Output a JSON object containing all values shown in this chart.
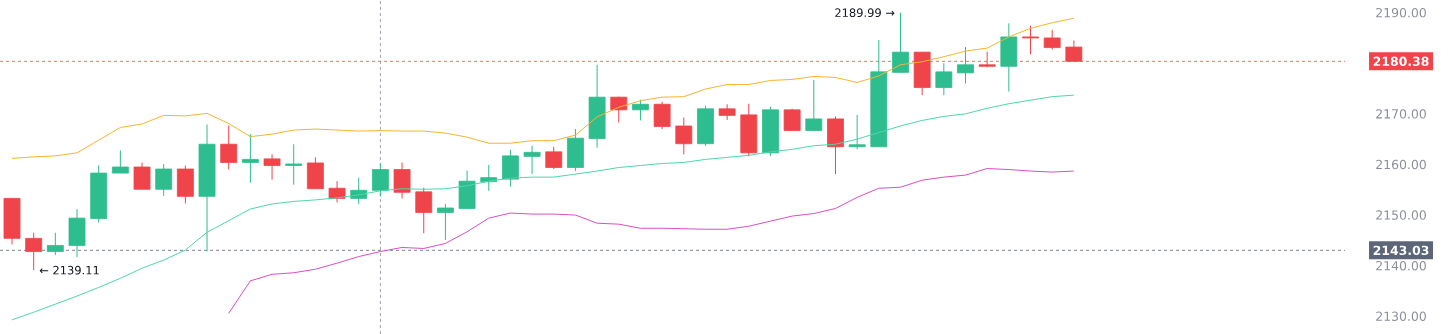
{
  "chart_data": {
    "type": "candlestick",
    "categories": [
      null,
      null,
      null,
      null,
      null,
      null,
      null,
      null,
      null,
      null,
      null,
      null,
      null,
      null,
      null,
      null,
      null,
      null,
      null,
      null,
      null,
      null,
      null,
      null,
      null,
      null,
      null,
      null,
      null,
      null,
      null,
      null,
      null,
      null,
      null,
      null,
      null,
      null,
      null,
      null,
      null,
      null,
      null,
      null,
      null,
      null,
      null,
      null,
      null,
      null
    ],
    "ohlc": [
      [
        2153.3,
        2153.4,
        2144.2,
        2145.4
      ],
      [
        2145.4,
        2146.5,
        2139.11,
        2142.8
      ],
      [
        2142.8,
        2146.5,
        2142.1,
        2144.0
      ],
      [
        2144.0,
        2151.2,
        2141.7,
        2149.4
      ],
      [
        2149.3,
        2159.8,
        2148.5,
        2158.3
      ],
      [
        2158.3,
        2162.8,
        2158.3,
        2159.5
      ],
      [
        2159.5,
        2160.4,
        2155.1,
        2155.1
      ],
      [
        2155.1,
        2160.1,
        2153.8,
        2159.1
      ],
      [
        2159.1,
        2159.8,
        2152.3,
        2153.7
      ],
      [
        2153.7,
        2167.9,
        2142.8,
        2164.0
      ],
      [
        2164.0,
        2167.7,
        2159.0,
        2160.4
      ],
      [
        2160.4,
        2166.0,
        2156.4,
        2161.0
      ],
      [
        2161.1,
        2162.0,
        2157.0,
        2159.8
      ],
      [
        2159.8,
        2164.0,
        2156.0,
        2160.1
      ],
      [
        2160.3,
        2161.4,
        2155.2,
        2155.2
      ],
      [
        2155.3,
        2156.7,
        2152.5,
        2153.3
      ],
      [
        2153.3,
        2157.4,
        2152.2,
        2154.9
      ],
      [
        2154.9,
        2160.2,
        2153.7,
        2159.0
      ],
      [
        2159.0,
        2160.4,
        2153.3,
        2154.5
      ],
      [
        2154.6,
        2155.4,
        2146.4,
        2150.5
      ],
      [
        2150.5,
        2152.2,
        2145.1,
        2151.4
      ],
      [
        2151.3,
        2158.8,
        2151.3,
        2156.7
      ],
      [
        2156.6,
        2159.9,
        2154.8,
        2157.4
      ],
      [
        2157.1,
        2162.9,
        2155.6,
        2161.7
      ],
      [
        2161.6,
        2163.7,
        2158.1,
        2162.4
      ],
      [
        2162.5,
        2163.5,
        2159.1,
        2159.4
      ],
      [
        2159.4,
        2167.0,
        2158.7,
        2165.2
      ],
      [
        2165.1,
        2179.7,
        2163.3,
        2173.3
      ],
      [
        2173.3,
        2173.4,
        2168.3,
        2170.8
      ],
      [
        2170.8,
        2172.8,
        2168.7,
        2171.9
      ],
      [
        2171.9,
        2172.4,
        2167.0,
        2167.5
      ],
      [
        2167.6,
        2169.3,
        2162.0,
        2164.1
      ],
      [
        2164.1,
        2171.6,
        2163.7,
        2171.0
      ],
      [
        2171.0,
        2171.9,
        2168.8,
        2169.7
      ],
      [
        2169.8,
        2172.0,
        2161.6,
        2162.3
      ],
      [
        2162.3,
        2171.4,
        2161.7,
        2170.8
      ],
      [
        2170.8,
        2171.0,
        2166.7,
        2166.7
      ],
      [
        2166.7,
        2176.7,
        2166.7,
        2169.0
      ],
      [
        2169.0,
        2169.5,
        2158.1,
        2163.5
      ],
      [
        2163.5,
        2169.8,
        2163.0,
        2163.9
      ],
      [
        2163.5,
        2184.6,
        2163.5,
        2178.3
      ],
      [
        2178.2,
        2189.99,
        2178.2,
        2182.2
      ],
      [
        2182.2,
        2182.2,
        2173.7,
        2175.2
      ],
      [
        2175.2,
        2180.0,
        2173.7,
        2178.3
      ],
      [
        2178.1,
        2183.2,
        2176.0,
        2179.7
      ],
      [
        2179.7,
        2182.3,
        2179.2,
        2179.4
      ],
      [
        2179.4,
        2187.9,
        2174.4,
        2185.2
      ],
      [
        2185.2,
        2187.4,
        2181.8,
        2185.0
      ],
      [
        2185.0,
        2186.6,
        2182.7,
        2183.1
      ],
      [
        2183.2,
        2184.5,
        2180.38,
        2180.38
      ]
    ],
    "colors": [
      "#ef454a",
      "#ef454a",
      "#2ebd8e",
      "#2ebd8e",
      "#2ebd8e",
      "#2ebd8e",
      "#ef454a",
      "#2ebd8e",
      "#ef454a",
      "#2ebd8e",
      "#ef454a",
      "#2ebd8e",
      "#ef454a",
      "#2ebd8e",
      "#ef454a",
      "#ef454a",
      "#2ebd8e",
      "#2ebd8e",
      "#ef454a",
      "#ef454a",
      "#2ebd8e",
      "#2ebd8e",
      "#2ebd8e",
      "#2ebd8e",
      "#2ebd8e",
      "#ef454a",
      "#2ebd8e",
      "#2ebd8e",
      "#ef454a",
      "#2ebd8e",
      "#ef454a",
      "#ef454a",
      "#2ebd8e",
      "#ef454a",
      "#ef454a",
      "#2ebd8e",
      "#ef454a",
      "#2ebd8e",
      "#ef454a",
      "#2ebd8e",
      "#2ebd8e",
      "#2ebd8e",
      "#ef454a",
      "#2ebd8e",
      "#2ebd8e",
      "#ef454a",
      "#2ebd8e",
      "#ef454a",
      "#ef454a",
      "#ef454a"
    ],
    "series": [
      {
        "type": "line",
        "color": "#f5b52e",
        "values": [
          2161.2,
          2161.5,
          2161.7,
          2162.3,
          2164.8,
          2167.3,
          2168.0,
          2169.7,
          2169.6,
          2170.1,
          2168.1,
          2165.5,
          2166.0,
          2166.8,
          2167.0,
          2166.8,
          2166.6,
          2166.7,
          2166.6,
          2166.6,
          2166.2,
          2165.4,
          2164.2,
          2164.2,
          2164.7,
          2164.7,
          2165.8,
          2169.4,
          2171.3,
          2172.6,
          2173.3,
          2173.4,
          2174.9,
          2175.8,
          2175.8,
          2176.6,
          2176.8,
          2177.4,
          2177.2,
          2176.2,
          2177.5,
          2179.7,
          2180.3,
          2181.3,
          2182.4,
          2183.0,
          2185.2,
          2186.9,
          2188.0,
          2188.9
        ]
      },
      {
        "type": "line",
        "color": "#4fd6ad",
        "values": [
          2129.3,
          2130.8,
          2132.4,
          2134.0,
          2135.7,
          2137.5,
          2139.5,
          2141.1,
          2143.1,
          2146.6,
          2148.9,
          2151.2,
          2152.2,
          2152.7,
          2153.0,
          2153.4,
          2154.0,
          2154.8,
          2155.2,
          2155.1,
          2155.2,
          2155.8,
          2156.7,
          2157.3,
          2157.5,
          2157.5,
          2158.1,
          2158.7,
          2159.4,
          2159.8,
          2160.2,
          2160.4,
          2161.0,
          2161.4,
          2161.8,
          2162.5,
          2163.0,
          2163.7,
          2164.0,
          2165.0,
          2166.3,
          2167.6,
          2168.7,
          2169.5,
          2170.0,
          2171.1,
          2172.0,
          2172.7,
          2173.4,
          2173.7
        ]
      },
      {
        "type": "line",
        "color": "#d94fc4",
        "values": [
          null,
          null,
          null,
          null,
          null,
          null,
          null,
          null,
          null,
          null,
          2130.6,
          2137.0,
          2138.3,
          2138.6,
          2139.3,
          2140.5,
          2141.8,
          2142.8,
          2143.6,
          2143.4,
          2144.4,
          2146.7,
          2149.4,
          2150.4,
          2150.2,
          2150.2,
          2150.0,
          2148.4,
          2148.2,
          2147.4,
          2147.4,
          2147.3,
          2147.2,
          2147.2,
          2147.8,
          2148.8,
          2149.8,
          2150.3,
          2151.3,
          2153.5,
          2155.3,
          2155.5,
          2156.9,
          2157.5,
          2157.9,
          2159.2,
          2159.0,
          2158.7,
          2158.5,
          2158.7
        ]
      }
    ],
    "ylim": [
      2126.5,
      2192.5
    ],
    "yticks": [
      {
        "value": 2130,
        "label": "2130.00"
      },
      {
        "value": 2140,
        "label": "2140.00"
      },
      {
        "value": 2150,
        "label": "2150.00"
      },
      {
        "value": 2160,
        "label": "2160.00"
      },
      {
        "value": 2170,
        "label": "2170.00"
      },
      {
        "value": 2190,
        "label": "2190.00"
      }
    ],
    "tick_labels": "y",
    "ref_lines": [
      {
        "axis": "y",
        "value": 2180.38,
        "label": "2180.38",
        "color": "#ef454a",
        "line_style": "dashed"
      },
      {
        "axis": "y",
        "value": 2143.03,
        "label": "2143.03",
        "color": "#5d6678",
        "line_style": "dashed"
      }
    ],
    "annotations": [
      "← 2139.11",
      "2189.99 →"
    ]
  }
}
